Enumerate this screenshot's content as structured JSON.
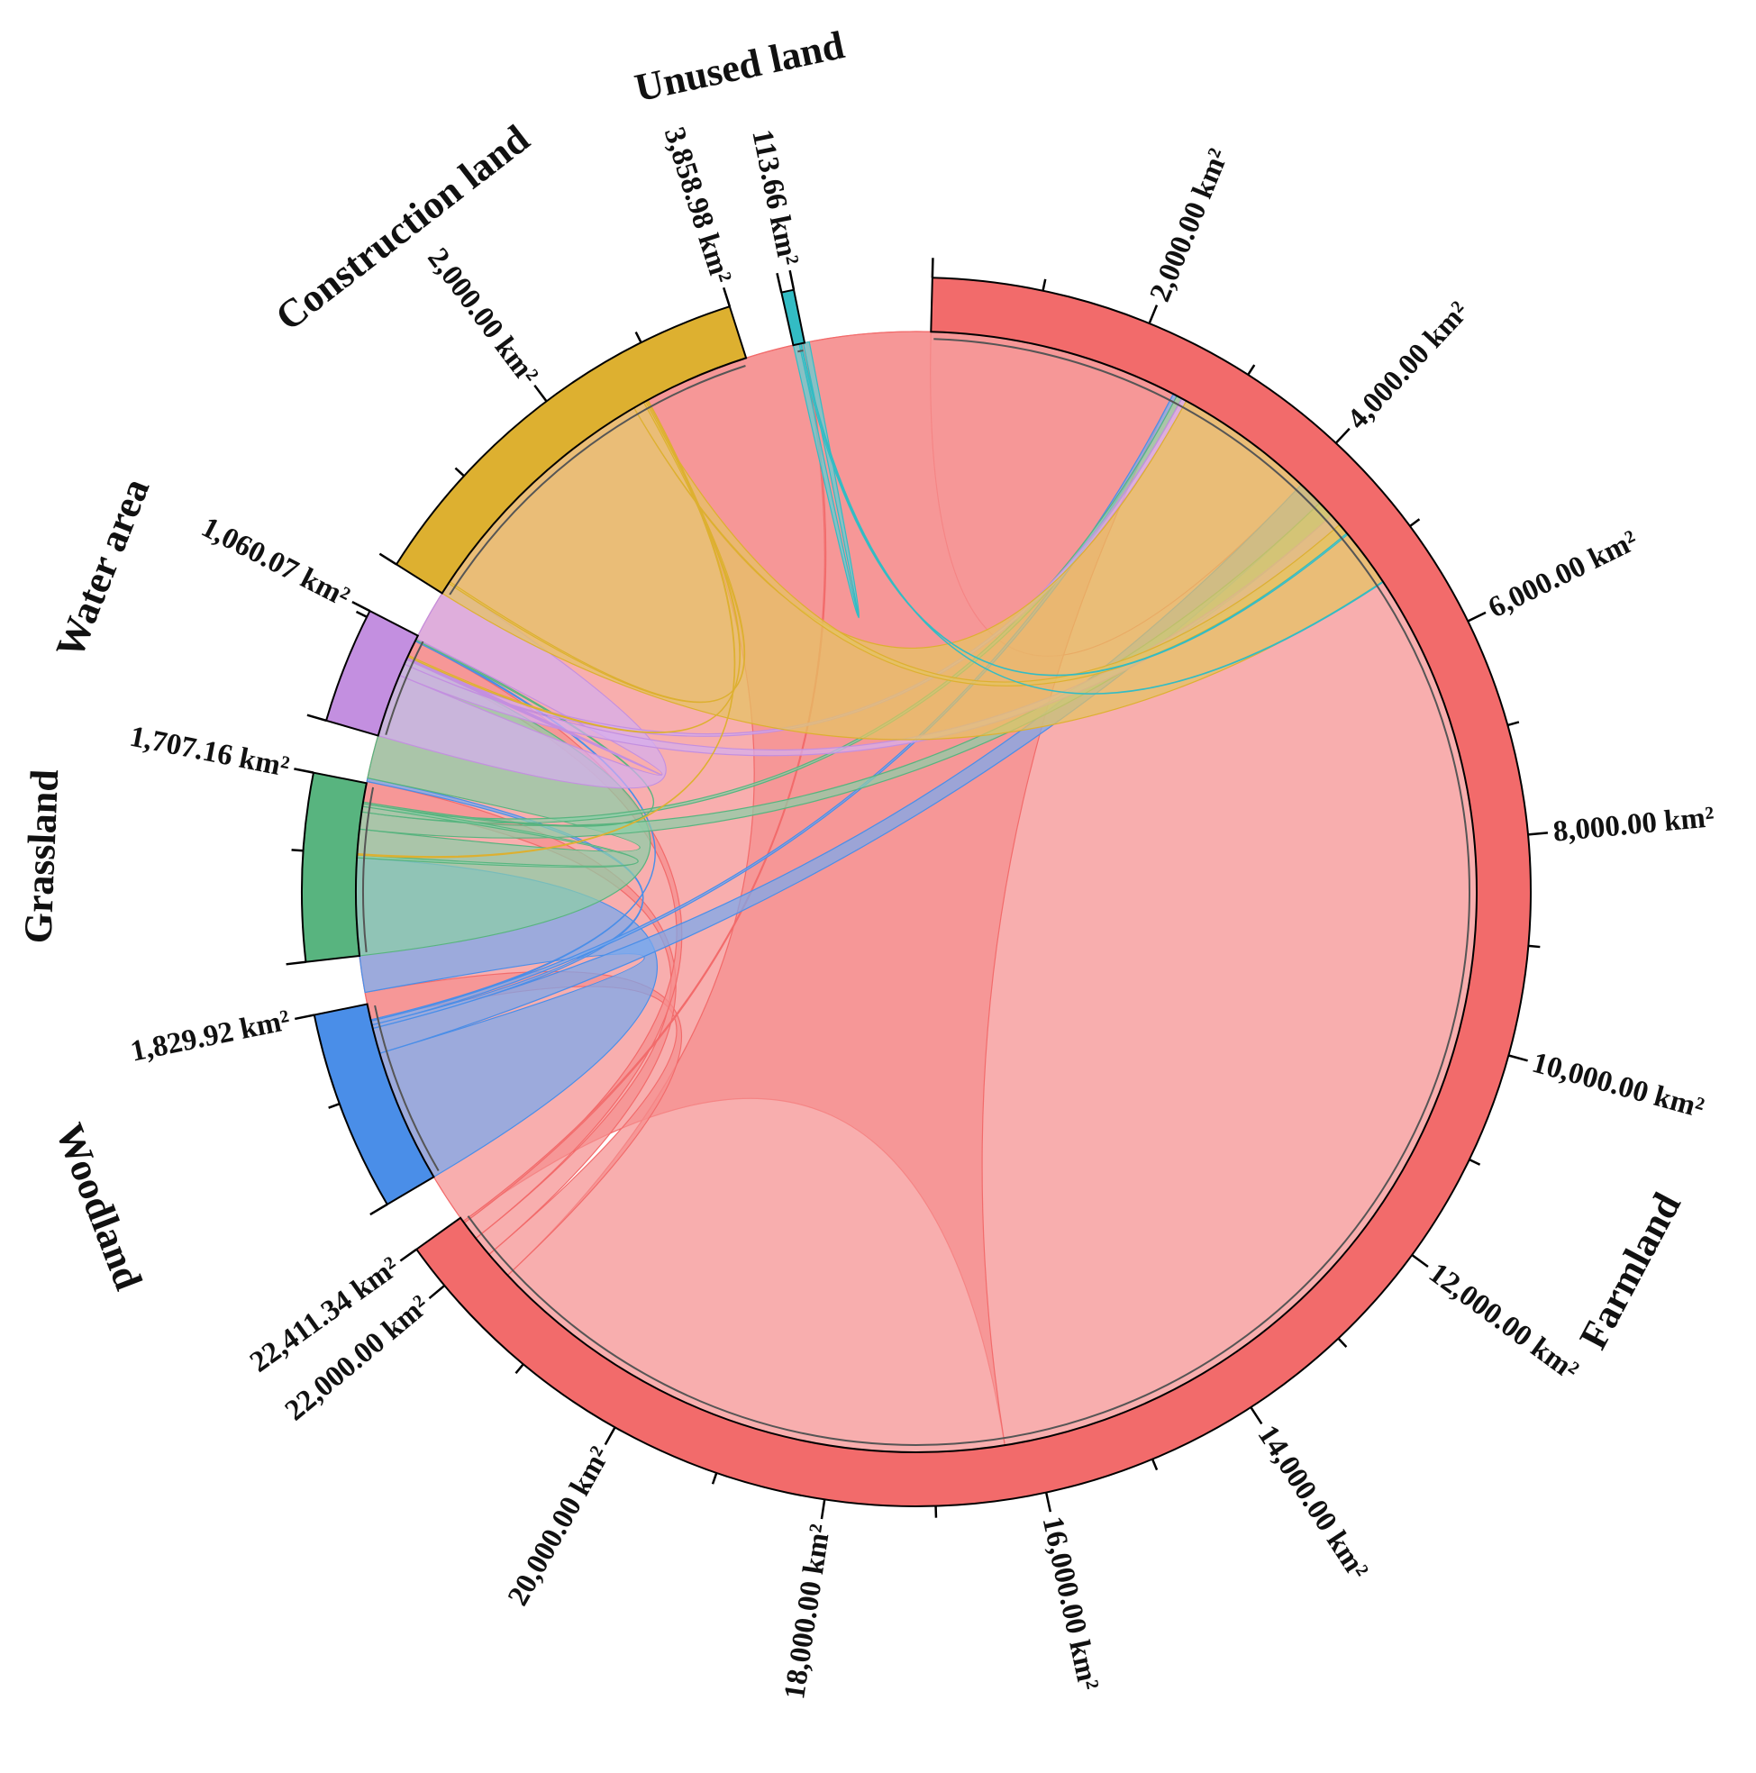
{
  "chart_data": {
    "type": "chord",
    "unit": "km²",
    "sectors": [
      {
        "name": "Farmland",
        "total": 22411.34,
        "total_label": "22,411.34 km²",
        "color": "#f26b6b",
        "chord_color": "#f58f8f"
      },
      {
        "name": "Woodland",
        "total": 1829.92,
        "total_label": "1,829.92 km²",
        "color": "#4a8ee8",
        "chord_color": "#78a9ef"
      },
      {
        "name": "Grassland",
        "total": 1707.16,
        "total_label": "1,707.16 km²",
        "color": "#58b47f",
        "chord_color": "#8ccfa8"
      },
      {
        "name": "Water area",
        "total": 1060.07,
        "total_label": "1,060.07 km²",
        "color": "#c38fe0",
        "chord_color": "#d6aeee"
      },
      {
        "name": "Construction land",
        "total": 3858.98,
        "total_label": "3,858.98 km²",
        "color": "#ddb030",
        "chord_color": "#e5c462"
      },
      {
        "name": "Unused land",
        "total": 113.66,
        "total_label": "113.66 km²",
        "color": "#33bcc4",
        "chord_color": "#5fd0d6"
      }
    ],
    "scale_ticks": {
      "Farmland": [
        "2,000.00 km²",
        "4,000.00 km²",
        "6,000.00 km²",
        "8,000.00 km²",
        "10,000.00 km²",
        "12,000.00 km²",
        "14,000.00 km²",
        "16,000.00 km²",
        "18,000.00 km²",
        "20,000.00 km²",
        "22,000.00 km²"
      ],
      "Construction land": [
        "2,000.00 km²"
      ]
    },
    "flows": [
      {
        "from": "Farmland",
        "to": "Farmland",
        "value": 16300
      },
      {
        "from": "Farmland",
        "to": "Construction land",
        "value": 5380
      },
      {
        "from": "Farmland",
        "to": "Woodland",
        "value": 275
      },
      {
        "from": "Farmland",
        "to": "Grassland",
        "value": 205
      },
      {
        "from": "Farmland",
        "to": "Water area",
        "value": 190
      },
      {
        "from": "Farmland",
        "to": "Unused land",
        "value": 18
      },
      {
        "from": "Woodland",
        "to": "Woodland",
        "value": 1330
      },
      {
        "from": "Woodland",
        "to": "Farmland",
        "value": 255
      },
      {
        "from": "Woodland",
        "to": "Grassland",
        "value": 35
      },
      {
        "from": "Woodland",
        "to": "Construction land",
        "value": 40
      },
      {
        "from": "Woodland",
        "to": "Water area",
        "value": 12
      },
      {
        "from": "Grassland",
        "to": "Grassland",
        "value": 1250
      },
      {
        "from": "Grassland",
        "to": "Farmland",
        "value": 170
      },
      {
        "from": "Grassland",
        "to": "Construction land",
        "value": 55
      },
      {
        "from": "Grassland",
        "to": "Woodland",
        "value": 28
      },
      {
        "from": "Grassland",
        "to": "Water area",
        "value": 15
      },
      {
        "from": "Water area",
        "to": "Water area",
        "value": 630
      },
      {
        "from": "Water area",
        "to": "Farmland",
        "value": 120
      },
      {
        "from": "Water area",
        "to": "Construction land",
        "value": 50
      },
      {
        "from": "Water area",
        "to": "Grassland",
        "value": 10
      },
      {
        "from": "Construction land",
        "to": "Construction land",
        "value": 2650
      },
      {
        "from": "Construction land",
        "to": "Farmland",
        "value": 110
      },
      {
        "from": "Construction land",
        "to": "Water area",
        "value": 20
      },
      {
        "from": "Construction land",
        "to": "Grassland",
        "value": 15
      },
      {
        "from": "Construction land",
        "to": "Woodland",
        "value": 12
      },
      {
        "from": "Unused land",
        "to": "Unused land",
        "value": 60
      },
      {
        "from": "Unused land",
        "to": "Farmland",
        "value": 15
      },
      {
        "from": "Unused land",
        "to": "Construction land",
        "value": 8
      }
    ]
  }
}
